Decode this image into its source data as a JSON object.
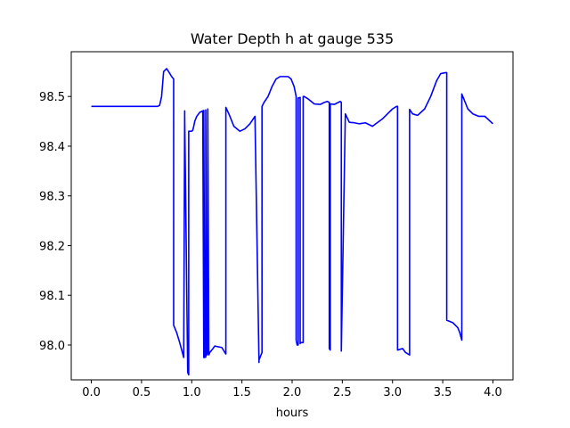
{
  "chart_data": {
    "type": "line",
    "title": "Water Depth h at gauge 535",
    "xlabel": "hours",
    "ylabel": "",
    "xlim": [
      -0.2,
      4.2
    ],
    "ylim": [
      97.93,
      98.59
    ],
    "x_ticks": [
      0.0,
      0.5,
      1.0,
      1.5,
      2.0,
      2.5,
      3.0,
      3.5,
      4.0
    ],
    "x_tick_labels": [
      "0.0",
      "0.5",
      "1.0",
      "1.5",
      "2.0",
      "2.5",
      "3.0",
      "3.5",
      "4.0"
    ],
    "y_ticks": [
      98.0,
      98.1,
      98.2,
      98.3,
      98.4,
      98.5
    ],
    "y_tick_labels": [
      "98.0",
      "98.1",
      "98.2",
      "98.3",
      "98.4",
      "98.5"
    ],
    "grid": false,
    "series": [
      {
        "color": "#0000ff",
        "x": [
          0.0,
          0.3,
          0.6,
          0.66,
          0.68,
          0.7,
          0.72,
          0.75,
          0.77,
          0.8,
          0.82,
          0.82,
          0.85,
          0.88,
          0.92,
          0.93,
          0.93,
          0.96,
          0.97,
          0.97,
          1.0,
          1.0,
          1.01,
          1.02,
          1.03,
          1.05,
          1.08,
          1.11,
          1.12,
          1.12,
          1.13,
          1.14,
          1.14,
          1.15,
          1.16,
          1.16,
          1.17,
          1.18,
          1.2,
          1.23,
          1.25,
          1.3,
          1.33,
          1.34,
          1.34,
          1.37,
          1.42,
          1.48,
          1.53,
          1.58,
          1.63,
          1.67,
          1.67,
          1.7,
          1.7,
          1.72,
          1.76,
          1.8,
          1.84,
          1.88,
          1.92,
          1.96,
          1.99,
          2.02,
          2.04,
          2.04,
          2.05,
          2.06,
          2.06,
          2.08,
          2.08,
          2.09,
          2.11,
          2.11,
          2.12,
          2.16,
          2.22,
          2.28,
          2.32,
          2.35,
          2.37,
          2.37,
          2.38,
          2.38,
          2.42,
          2.46,
          2.48,
          2.49,
          2.49,
          2.53,
          2.57,
          2.62,
          2.67,
          2.73,
          2.8,
          2.9,
          3.0,
          3.04,
          3.05,
          3.05,
          3.1,
          3.13,
          3.17,
          3.17,
          3.2,
          3.25,
          3.32,
          3.38,
          3.44,
          3.48,
          3.53,
          3.54,
          3.54,
          3.6,
          3.65,
          3.67,
          3.69,
          3.69,
          3.71,
          3.75,
          3.8,
          3.86,
          3.92,
          4.0
        ],
        "y": [
          98.48,
          98.48,
          98.48,
          98.48,
          98.482,
          98.5,
          98.55,
          98.556,
          98.55,
          98.54,
          98.535,
          98.04,
          98.025,
          98.005,
          97.975,
          98.471,
          98.46,
          97.945,
          97.94,
          98.43,
          98.43,
          98.43,
          98.432,
          98.44,
          98.45,
          98.46,
          98.468,
          98.471,
          97.975,
          98.472,
          97.975,
          97.976,
          98.473,
          97.98,
          97.984,
          98.475,
          97.98,
          97.985,
          97.99,
          97.998,
          97.997,
          97.995,
          97.985,
          97.982,
          98.478,
          98.465,
          98.44,
          98.43,
          98.435,
          98.445,
          98.46,
          97.965,
          97.97,
          97.985,
          98.48,
          98.488,
          98.5,
          98.52,
          98.535,
          98.54,
          98.54,
          98.54,
          98.535,
          98.52,
          98.5,
          98.01,
          98.0,
          98.0,
          98.497,
          98.498,
          98.003,
          98.005,
          98.005,
          98.5,
          98.5,
          98.495,
          98.485,
          98.484,
          98.488,
          98.49,
          98.488,
          97.993,
          97.99,
          98.485,
          98.484,
          98.488,
          98.49,
          98.488,
          97.988,
          98.465,
          98.448,
          98.447,
          98.445,
          98.447,
          98.44,
          98.455,
          98.475,
          98.48,
          98.48,
          97.99,
          97.993,
          97.985,
          97.98,
          98.474,
          98.465,
          98.462,
          98.475,
          98.5,
          98.532,
          98.546,
          98.548,
          98.548,
          98.05,
          98.045,
          98.035,
          98.025,
          98.01,
          98.505,
          98.495,
          98.475,
          98.465,
          98.46,
          98.46,
          98.445
        ]
      }
    ]
  }
}
